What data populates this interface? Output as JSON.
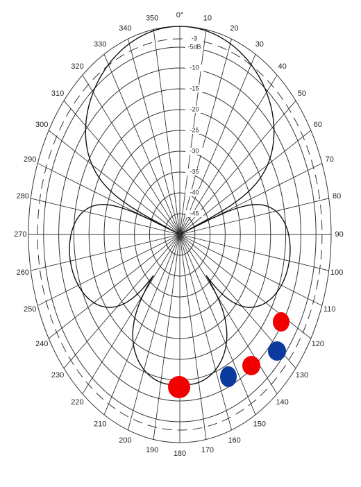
{
  "angle_labels": [
    "0°",
    "10",
    "20",
    "30",
    "40",
    "50",
    "60",
    "70",
    "80",
    "90",
    "100",
    "110",
    "120",
    "130",
    "140",
    "150",
    "160",
    "170",
    "180",
    "190",
    "200",
    "210",
    "220",
    "230",
    "240",
    "250",
    "260",
    "270",
    "280",
    "290",
    "300",
    "310",
    "320",
    "330",
    "340",
    "350"
  ],
  "db_labels": [
    "-3",
    "-5dB",
    "-10",
    "-15",
    "-20",
    "-25",
    "-30",
    "-35",
    "-40",
    "-45"
  ]
}
